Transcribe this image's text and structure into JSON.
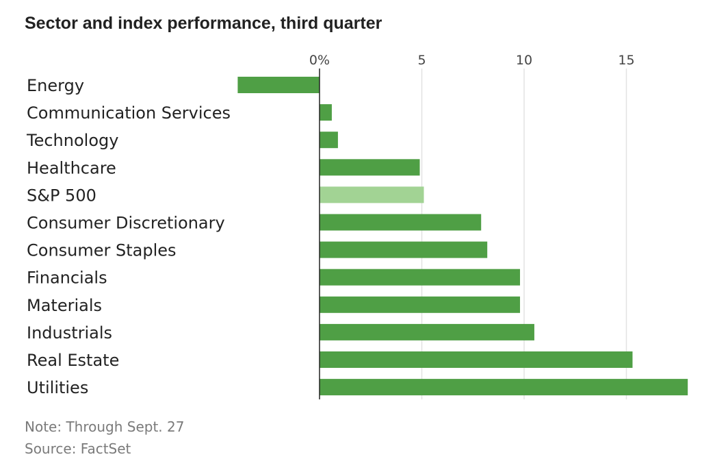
{
  "chart_data": {
    "type": "bar",
    "orientation": "horizontal",
    "title": "Sector and index performance, third quarter",
    "categories": [
      "Energy",
      "Communication Services",
      "Technology",
      "Healthcare",
      "S&P 500",
      "Consumer Discretionary",
      "Consumer Staples",
      "Financials",
      "Materials",
      "Industrials",
      "Real Estate",
      "Utilities"
    ],
    "values": [
      -4.0,
      0.6,
      0.9,
      4.9,
      5.1,
      7.9,
      8.2,
      9.8,
      9.8,
      10.5,
      15.3,
      18.0
    ],
    "highlight_category": "S&P 500",
    "xlim": [
      -4.2,
      18.1
    ],
    "x_ticks": [
      0,
      5,
      10,
      15
    ],
    "x_tick_labels": [
      "0%",
      "5",
      "10",
      "15"
    ],
    "x_axis_position": "top",
    "grid": true,
    "colors": {
      "bar": "#4f9f45",
      "highlight": "#a2d394",
      "grid": "#e2e2e2",
      "zero_line": "#222222",
      "label": "#222222",
      "tick_label": "#444444"
    }
  },
  "notes": {
    "note": "Note: Through Sept. 27",
    "source": "Source: FactSet"
  }
}
